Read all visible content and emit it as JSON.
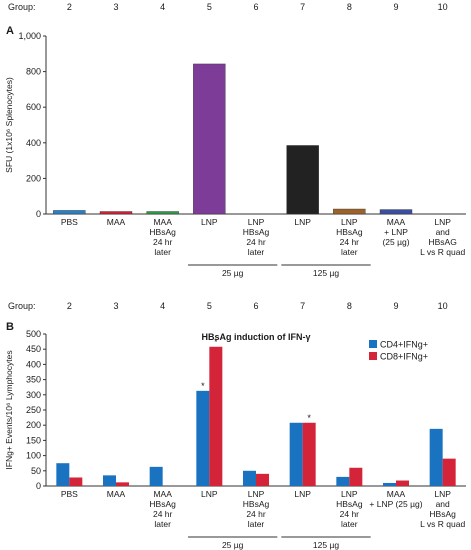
{
  "group_label": "Group:",
  "groups": [
    "2",
    "3",
    "4",
    "5",
    "6",
    "7",
    "8",
    "9",
    "10"
  ],
  "chart_data": [
    {
      "type": "bar",
      "panel": "A",
      "title": "",
      "xlabel": "",
      "ylabel": "SFU (1x10⁶ Splenocytes)",
      "ylim": [
        0,
        1000
      ],
      "yticks": [
        0,
        200,
        400,
        600,
        800,
        "1,000"
      ],
      "categories": [
        "PBS",
        "MAA",
        "MAA HBsAg 24 hr later",
        "LNP",
        "LNP HBsAg 24 hr later",
        "LNP",
        "LNP HBsAg 24 hr later",
        "MAA + LNP (25 µg)",
        "LNP and HBsAG L vs R quad"
      ],
      "category_lines": [
        [
          "PBS"
        ],
        [
          "MAA"
        ],
        [
          "MAA",
          "HBsAg",
          "24 hr",
          "later"
        ],
        [
          "LNP"
        ],
        [
          "LNP",
          "HBsAg",
          "24 hr",
          "later"
        ],
        [
          "LNP"
        ],
        [
          "LNP",
          "HBsAg",
          "24 hr",
          "later"
        ],
        [
          "MAA",
          "+ LNP",
          "(25 µg)"
        ],
        [
          "LNP",
          "and",
          "HBsAG",
          "L vs R quad"
        ]
      ],
      "values": [
        20,
        14,
        14,
        843,
        0,
        385,
        28,
        25,
        0
      ],
      "colors": [
        "#2a80c2",
        "#d11f37",
        "#2e9a46",
        "#7d3c98",
        "#cccccc",
        "#222222",
        "#9b6229",
        "#3a4fa0",
        "#cccccc"
      ],
      "dose_groups": [
        {
          "label": "25 µg",
          "from": 3,
          "to": 4
        },
        {
          "label": "125 µg",
          "from": 5,
          "to": 6
        }
      ],
      "grid": false
    },
    {
      "type": "bar",
      "panel": "B",
      "title": "HBsAg induction of IFN-γ",
      "xlabel": "",
      "ylabel": "IFNg+ Events/10⁶ Lymphocytes",
      "ylim": [
        0,
        500
      ],
      "yticks": [
        0,
        50,
        100,
        150,
        200,
        250,
        300,
        350,
        400,
        450,
        500
      ],
      "categories": [
        "PBS",
        "MAA",
        "MAA HBsAg 24 hr later",
        "LNP",
        "LNP HBsAg 24 hr later",
        "LNP",
        "LNP HBsAg 24 hr later",
        "MAA + LNP (25 µg)",
        "LNP and HBsAg L vs R quad"
      ],
      "category_lines": [
        [
          "PBS"
        ],
        [
          "MAA"
        ],
        [
          "MAA",
          "HBsAg",
          "24 hr",
          "later"
        ],
        [
          "LNP"
        ],
        [
          "LNP",
          "HBsAg",
          "24 hr",
          "later"
        ],
        [
          "LNP"
        ],
        [
          "LNP",
          "HBsAg",
          "24 hr",
          "later"
        ],
        [
          "MAA",
          "+ LNP (25 µg)"
        ],
        [
          "LNP",
          "and",
          "HBsAg",
          "L vs R quad"
        ]
      ],
      "series": [
        {
          "name": "CD4+IFNg+",
          "color": "#1a73c0",
          "values": [
            75,
            35,
            63,
            313,
            50,
            208,
            30,
            10,
            188
          ]
        },
        {
          "name": "CD8+IFNg+",
          "color": "#d4243a",
          "values": [
            28,
            12,
            0,
            458,
            40,
            208,
            60,
            18,
            90
          ]
        }
      ],
      "annotations": [
        {
          "text": "*",
          "category": 3,
          "series": 0
        },
        {
          "text": "*",
          "category": 3,
          "series": 1
        },
        {
          "text": "*",
          "category": 5,
          "series": 1
        }
      ],
      "dose_groups": [
        {
          "label": "25 µg",
          "from": 3,
          "to": 4
        },
        {
          "label": "125 µg",
          "from": 5,
          "to": 6
        }
      ],
      "legend": "top-right",
      "grid": false
    }
  ]
}
